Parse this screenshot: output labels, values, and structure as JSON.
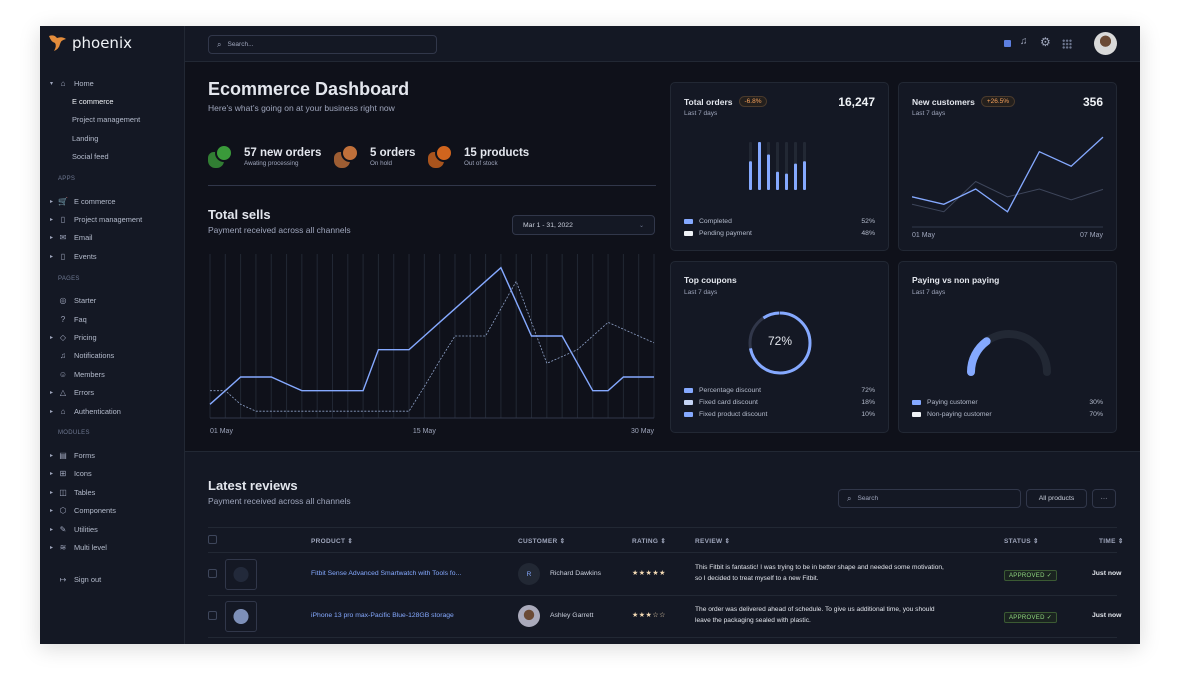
{
  "app": {
    "brand": "phoenix"
  },
  "topbar": {
    "search_placeholder": "Search...",
    "icons": [
      "theme-toggle-icon",
      "bell-icon",
      "gear-icon",
      "apps-grid-icon",
      "user-avatar"
    ]
  },
  "sidebar": {
    "sections": [
      {
        "heading": "",
        "items": [
          {
            "label": "Home",
            "icon": "⌂",
            "caret": "▾",
            "expanded": true
          },
          {
            "label": "E commerce",
            "sub": true,
            "active": true
          },
          {
            "label": "Project management",
            "sub": true
          },
          {
            "label": "Landing",
            "sub": true
          },
          {
            "label": "Social feed",
            "sub": true
          }
        ]
      },
      {
        "heading": "APPS",
        "items": [
          {
            "label": "E commerce",
            "icon": "🛒",
            "caret": "▸"
          },
          {
            "label": "Project management",
            "icon": "▯",
            "caret": "▸"
          },
          {
            "label": "Email",
            "icon": "✉",
            "caret": "▸"
          },
          {
            "label": "Events",
            "icon": "▯",
            "caret": "▸"
          }
        ]
      },
      {
        "heading": "PAGES",
        "items": [
          {
            "label": "Starter",
            "icon": "◎"
          },
          {
            "label": "Faq",
            "icon": "?"
          },
          {
            "label": "Pricing",
            "icon": "◇",
            "caret": "▸"
          },
          {
            "label": "Notifications",
            "icon": "♫"
          },
          {
            "label": "Members",
            "icon": "☺"
          },
          {
            "label": "Errors",
            "icon": "△",
            "caret": "▸"
          },
          {
            "label": "Authentication",
            "icon": "⌂",
            "caret": "▸"
          }
        ]
      },
      {
        "heading": "MODULES",
        "items": [
          {
            "label": "Forms",
            "icon": "▤",
            "caret": "▸"
          },
          {
            "label": "Icons",
            "icon": "⊞",
            "caret": "▸"
          },
          {
            "label": "Tables",
            "icon": "◫",
            "caret": "▸"
          },
          {
            "label": "Components",
            "icon": "⬡",
            "caret": "▸"
          },
          {
            "label": "Utilities",
            "icon": "✎",
            "caret": "▸"
          },
          {
            "label": "Multi level",
            "icon": "≋",
            "caret": "▸"
          }
        ]
      }
    ],
    "signout": "Sign out"
  },
  "header": {
    "title": "Ecommerce Dashboard",
    "subtitle": "Here’s what’s going on at your business right now"
  },
  "stats": [
    {
      "value": "57 new orders",
      "label": "Awating processing",
      "color": "#3a9a3a"
    },
    {
      "value": "5 orders",
      "label": "On hold",
      "color": "#c0703a"
    },
    {
      "value": "15 products",
      "label": "Out of stock",
      "color": "#d0651e"
    }
  ],
  "total_sells": {
    "title": "Total sells",
    "subtitle": "Payment received across all channels",
    "date_range": "Mar 1 - 31, 2022",
    "chart_data": {
      "type": "line",
      "x_tick_labels": [
        "01 May",
        "15 May",
        "30 May"
      ],
      "x": [
        1,
        2,
        3,
        4,
        5,
        6,
        7,
        8,
        9,
        10,
        11,
        12,
        13,
        14,
        15,
        16,
        17,
        18,
        19,
        20,
        21,
        22,
        23,
        24,
        25,
        26,
        27,
        28,
        29,
        30
      ],
      "series": [
        {
          "style": "solid",
          "color": "#85a9ff",
          "values": [
            1,
            2,
            3,
            3,
            3,
            2.5,
            2,
            2,
            2,
            2,
            2,
            5,
            5,
            5,
            6,
            7,
            8,
            9,
            10,
            11,
            8.5,
            6,
            6,
            6,
            4,
            2,
            2,
            3,
            3,
            3
          ]
        },
        {
          "style": "dashed",
          "color": "#8fa2c8",
          "values": [
            2,
            2,
            1,
            0.5,
            0.5,
            0.5,
            0.5,
            0.5,
            0.5,
            0.5,
            0.5,
            0.5,
            0.5,
            0.5,
            2.3,
            4.2,
            6,
            6,
            6,
            8,
            10,
            7,
            4,
            4.5,
            5,
            6,
            7,
            6.5,
            6,
            5.5
          ]
        }
      ],
      "ylim": [
        0,
        12
      ],
      "grid": "vertical"
    }
  },
  "cards": {
    "total_orders": {
      "title": "Total orders",
      "badge": "-6.8%",
      "value": "16,247",
      "subtitle": "Last 7 days",
      "chart_data": {
        "type": "bar",
        "values": [
          0.6,
          1.0,
          0.74,
          0.38,
          0.34,
          0.55,
          0.6
        ],
        "ylim": [
          0,
          1
        ]
      },
      "legend": [
        {
          "label": "Completed",
          "pct": "52%",
          "color": "#85a9ff"
        },
        {
          "label": "Pending payment",
          "pct": "48%",
          "color": "#eff2f6"
        }
      ]
    },
    "new_customers": {
      "title": "New customers",
      "badge": "+26.5%",
      "value": "356",
      "subtitle": "Last 7 days",
      "chart_data": {
        "type": "line",
        "x_tick_labels": [
          "01 May",
          "07 May"
        ],
        "ylim": [
          0,
          28
        ],
        "series": [
          {
            "color": "#85a9ff",
            "values": [
              8.9,
              6.7,
              11.2,
              4.5,
              22.2,
              17.9,
              26.5
            ]
          },
          {
            "color": "#3e465b",
            "values": [
              6.7,
              4.5,
              13.4,
              8.9,
              11.2,
              8,
              11.1
            ]
          }
        ]
      }
    },
    "top_coupons": {
      "title": "Top coupons",
      "subtitle": "Last 7 days",
      "center": "72%",
      "chart_data": {
        "type": "pie",
        "values": [
          72,
          18,
          10
        ]
      },
      "legend": [
        {
          "label": "Percentage discount",
          "pct": "72%",
          "color": "#85a9ff"
        },
        {
          "label": "Fixed card discount",
          "pct": "18%",
          "color": "#c5d4f5"
        },
        {
          "label": "Fixed product discount",
          "pct": "10%",
          "color": "#85a9ff"
        }
      ]
    },
    "paying": {
      "title": "Paying vs non paying",
      "subtitle": "Last 7 days",
      "chart_data": {
        "type": "gauge",
        "values": [
          30,
          70
        ]
      },
      "legend": [
        {
          "label": "Paying customer",
          "pct": "30%",
          "color": "#85a9ff"
        },
        {
          "label": "Non-paying customer",
          "pct": "70%",
          "color": "#eff2f6"
        }
      ]
    }
  },
  "reviews": {
    "title": "Latest reviews",
    "subtitle": "Payment received across all channels",
    "search_placeholder": "Search",
    "filter": "All products",
    "more": "···",
    "columns": [
      "PRODUCT",
      "CUSTOMER",
      "RATING",
      "REVIEW",
      "STATUS",
      "TIME"
    ],
    "rows": [
      {
        "product": "Fitbit Sense Advanced Smartwatch with Tools fo...",
        "customer": "Richard Dawkins",
        "initial": "R",
        "rating": 5,
        "review_1": "This Fitbit is fantastic! I was trying to be in better shape and needed some motivation,",
        "review_2": "so I decided to treat myself to a new Fitbit.",
        "status": "APPROVED ✓",
        "time": "Just now"
      },
      {
        "product": "iPhone 13 pro max-Pacific Blue-128GB storage",
        "customer": "Ashley Garrett",
        "initial": "",
        "rating": 3,
        "review_1": "The order was delivered ahead of schedule. To give us additional time, you should",
        "review_2": "leave the packaging sealed with plastic.",
        "status": "APPROVED ✓",
        "time": "Just now"
      }
    ]
  }
}
